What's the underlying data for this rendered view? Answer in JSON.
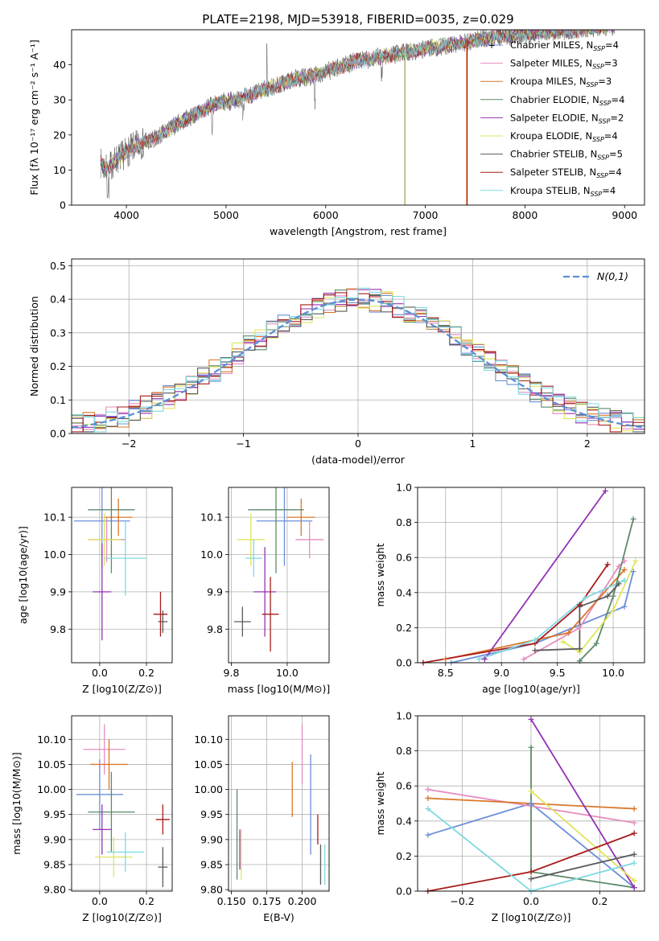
{
  "title": "PLATE=2198, MJD=53918, FIBERID=0035, z=0.029",
  "colors": {
    "Chabrier MILES": "#6b8fd9",
    "Salpeter MILES": "#e58cc0",
    "Kroupa MILES": "#d9772a",
    "Chabrier ELODIE": "#5c8a6a",
    "Salpeter ELODIE": "#9432b5",
    "Kroupa ELODIE": "#dfe55c",
    "Chabrier STELIB": "#5a5a5a",
    "Salpeter STELIB": "#a81c1c",
    "Kroupa STELIB": "#7fd9e0"
  },
  "chart_data": [
    {
      "id": "spectrum",
      "type": "line",
      "title": "PLATE=2198, MJD=53918, FIBERID=0035, z=0.029",
      "xlabel": "wavelength [Angstrom, rest frame]",
      "ylabel": "Flux [fλ 10⁻¹⁷ erg cm⁻² s⁻¹ A⁻¹]",
      "xlim": [
        3450,
        9200
      ],
      "ylim": [
        0,
        50
      ],
      "xticks": [
        4000,
        5000,
        6000,
        7000,
        8000,
        9000
      ],
      "yticks": [
        0,
        10,
        20,
        30,
        40
      ],
      "grid": false,
      "legend_position": "right",
      "legend": [
        {
          "name": "Chabrier MILES",
          "main": "Chabrier MILES, N",
          "sub": "SSP",
          "tail": "=4"
        },
        {
          "name": "Salpeter MILES",
          "main": "Salpeter MILES, N",
          "sub": "SSP",
          "tail": "=3"
        },
        {
          "name": "Kroupa MILES",
          "main": "Kroupa MILES, N",
          "sub": "SSP",
          "tail": "=3"
        },
        {
          "name": "Chabrier ELODIE",
          "main": "Chabrier ELODIE, N",
          "sub": "SSP",
          "tail": "=4"
        },
        {
          "name": "Salpeter ELODIE",
          "main": "Salpeter ELODIE, N",
          "sub": "SSP",
          "tail": "=2"
        },
        {
          "name": "Kroupa ELODIE",
          "main": "Kroupa ELODIE, N",
          "sub": "SSP",
          "tail": "=4"
        },
        {
          "name": "Chabrier STELIB",
          "main": "Chabrier STELIB, N",
          "sub": "SSP",
          "tail": "=5"
        },
        {
          "name": "Salpeter STELIB",
          "main": "Salpeter STELIB, N",
          "sub": "SSP",
          "tail": "=4"
        },
        {
          "name": "Kroupa STELIB",
          "main": "Kroupa STELIB, N",
          "sub": "SSP",
          "tail": "=4"
        }
      ],
      "continuum": [
        [
          3740,
          12
        ],
        [
          3800,
          10
        ],
        [
          3900,
          13
        ],
        [
          4000,
          15
        ],
        [
          4100,
          17
        ],
        [
          4300,
          19
        ],
        [
          4500,
          23
        ],
        [
          4700,
          26
        ],
        [
          4900,
          29
        ],
        [
          5100,
          30
        ],
        [
          5300,
          32
        ],
        [
          5500,
          34
        ],
        [
          5700,
          36
        ],
        [
          5900,
          37
        ],
        [
          6100,
          39
        ],
        [
          6300,
          41
        ],
        [
          6500,
          42
        ],
        [
          6700,
          43
        ],
        [
          6900,
          44
        ],
        [
          7100,
          45
        ],
        [
          7300,
          46
        ],
        [
          7500,
          47
        ],
        [
          7700,
          48
        ],
        [
          7900,
          48.5
        ],
        [
          8100,
          49
        ],
        [
          8300,
          49.5
        ],
        [
          8500,
          50
        ],
        [
          8800,
          51
        ]
      ]
    },
    {
      "id": "residuals",
      "type": "bar",
      "xlabel": "(data-model)/error",
      "ylabel": "Normed distribution",
      "xlim": [
        -2.5,
        2.5
      ],
      "ylim": [
        0,
        0.52
      ],
      "xticks": [
        -2,
        -1,
        0,
        1,
        2
      ],
      "yticks": [
        0.0,
        0.1,
        0.2,
        0.3,
        0.4,
        0.5
      ],
      "grid": true,
      "legend_position": "top-right",
      "legend": "N(0,1)",
      "bin_width": 0.1
    },
    {
      "id": "age-Z",
      "type": "scatter",
      "xlabel": "Z [log10(Z/Z⊙)]",
      "ylabel": "age  [log10(age/yr)]",
      "xlim": [
        -0.12,
        0.31
      ],
      "ylim": [
        9.71,
        10.18
      ],
      "xticks": [
        0.0,
        0.2
      ],
      "yticks": [
        9.8,
        9.9,
        10.0,
        10.1
      ],
      "grid": true,
      "points": [
        {
          "series": "Chabrier MILES",
          "x": 0.01,
          "y": 10.09,
          "xerr": 0.12,
          "yerr": 0.13
        },
        {
          "series": "Salpeter MILES",
          "x": 0.03,
          "y": 10.04,
          "xerr": 0.08,
          "yerr": 0.06
        },
        {
          "series": "Kroupa MILES",
          "x": 0.08,
          "y": 10.1,
          "xerr": 0.06,
          "yerr": 0.05
        },
        {
          "series": "Chabrier ELODIE",
          "x": 0.05,
          "y": 10.12,
          "xerr": 0.1,
          "yerr": 0.17
        },
        {
          "series": "Salpeter ELODIE",
          "x": 0.01,
          "y": 9.9,
          "xerr": 0.04,
          "yerr": 0.13
        },
        {
          "series": "Kroupa ELODIE",
          "x": 0.02,
          "y": 10.04,
          "xerr": 0.07,
          "yerr": 0.07
        },
        {
          "series": "Chabrier STELIB",
          "x": 0.27,
          "y": 9.82,
          "xerr": 0.02,
          "yerr": 0.03
        },
        {
          "series": "Salpeter STELIB",
          "x": 0.26,
          "y": 9.84,
          "xerr": 0.03,
          "yerr": 0.06
        },
        {
          "series": "Kroupa STELIB",
          "x": 0.11,
          "y": 9.99,
          "xerr": 0.09,
          "yerr": 0.1
        }
      ]
    },
    {
      "id": "age-mass",
      "type": "scatter",
      "xlabel": "mass [log10(M/M⊙)]",
      "ylabel": "",
      "xlim": [
        9.79,
        10.15
      ],
      "ylim": [
        9.71,
        10.18
      ],
      "xticks": [
        9.8,
        10.0
      ],
      "yticks": [
        9.8,
        9.9,
        10.0,
        10.1
      ],
      "grid": true,
      "points": [
        {
          "series": "Chabrier MILES",
          "x": 9.99,
          "y": 10.09,
          "xerr": 0.1,
          "yerr": 0.12
        },
        {
          "series": "Salpeter MILES",
          "x": 10.08,
          "y": 10.04,
          "xerr": 0.05,
          "yerr": 0.05
        },
        {
          "series": "Kroupa MILES",
          "x": 10.05,
          "y": 10.1,
          "xerr": 0.05,
          "yerr": 0.05
        },
        {
          "series": "Chabrier ELODIE",
          "x": 9.96,
          "y": 10.12,
          "xerr": 0.1,
          "yerr": 0.17
        },
        {
          "series": "Salpeter ELODIE",
          "x": 9.92,
          "y": 9.9,
          "xerr": 0.04,
          "yerr": 0.12
        },
        {
          "series": "Kroupa ELODIE",
          "x": 9.87,
          "y": 10.04,
          "xerr": 0.05,
          "yerr": 0.07
        },
        {
          "series": "Chabrier STELIB",
          "x": 9.84,
          "y": 9.82,
          "xerr": 0.03,
          "yerr": 0.04
        },
        {
          "series": "Salpeter STELIB",
          "x": 9.94,
          "y": 9.84,
          "xerr": 0.03,
          "yerr": 0.1
        },
        {
          "series": "Kroupa STELIB",
          "x": 9.88,
          "y": 9.99,
          "xerr": 0.03,
          "yerr": 0.05
        }
      ]
    },
    {
      "id": "weight-age",
      "type": "line",
      "xlabel": "age  [log10(age/yr)]",
      "ylabel": "mass weight",
      "xlim": [
        8.25,
        10.28
      ],
      "ylim": [
        0,
        1
      ],
      "xticks": [
        8.5,
        9.0,
        9.5,
        10.0
      ],
      "yticks": [
        0.0,
        0.2,
        0.4,
        0.6,
        0.8,
        1.0
      ],
      "grid": true,
      "series": [
        {
          "name": "Chabrier MILES",
          "points": [
            [
              8.55,
              0.0
            ],
            [
              9.3,
              0.11
            ],
            [
              10.1,
              0.32
            ],
            [
              10.18,
              0.52
            ]
          ]
        },
        {
          "name": "Salpeter MILES",
          "points": [
            [
              9.2,
              0.02
            ],
            [
              9.7,
              0.2
            ],
            [
              10.05,
              0.55
            ],
            [
              10.1,
              0.58
            ]
          ]
        },
        {
          "name": "Kroupa MILES",
          "points": [
            [
              8.5,
              0.02
            ],
            [
              9.6,
              0.17
            ],
            [
              10.1,
              0.53
            ]
          ]
        },
        {
          "name": "Chabrier ELODIE",
          "points": [
            [
              9.7,
              0.01
            ],
            [
              9.85,
              0.11
            ],
            [
              10.0,
              0.38
            ],
            [
              10.18,
              0.82
            ]
          ]
        },
        {
          "name": "Salpeter ELODIE",
          "points": [
            [
              8.85,
              0.02
            ],
            [
              9.93,
              0.98
            ]
          ]
        },
        {
          "name": "Kroupa ELODIE",
          "points": [
            [
              9.55,
              0.12
            ],
            [
              9.7,
              0.06
            ],
            [
              10.0,
              0.3
            ],
            [
              10.2,
              0.58
            ]
          ]
        },
        {
          "name": "Chabrier STELIB",
          "points": [
            [
              9.3,
              0.07
            ],
            [
              9.7,
              0.08
            ],
            [
              9.7,
              0.32
            ],
            [
              9.95,
              0.38
            ],
            [
              10.05,
              0.45
            ]
          ]
        },
        {
          "name": "Salpeter STELIB",
          "points": [
            [
              8.3,
              0.0
            ],
            [
              9.3,
              0.11
            ],
            [
              9.7,
              0.33
            ],
            [
              9.95,
              0.56
            ]
          ]
        },
        {
          "name": "Kroupa STELIB",
          "points": [
            [
              8.8,
              0.02
            ],
            [
              9.3,
              0.13
            ],
            [
              9.75,
              0.37
            ],
            [
              10.1,
              0.47
            ]
          ]
        }
      ]
    },
    {
      "id": "mass-Z",
      "type": "scatter",
      "xlabel": "Z [log10(Z/Z⊙)]",
      "ylabel": "mass [log10(M/M⊙)]",
      "xlim": [
        -0.12,
        0.31
      ],
      "ylim": [
        9.797,
        10.147
      ],
      "xticks": [
        0.0,
        0.2
      ],
      "yticks": [
        9.8,
        9.85,
        9.9,
        9.95,
        10.0,
        10.05,
        10.1
      ],
      "grid": true,
      "points": [
        {
          "series": "Chabrier MILES",
          "x": 0.0,
          "y": 9.99,
          "xerr": 0.1,
          "yerr": 0.07
        },
        {
          "series": "Salpeter MILES",
          "x": 0.02,
          "y": 10.08,
          "xerr": 0.09,
          "yerr": 0.05
        },
        {
          "series": "Kroupa MILES",
          "x": 0.04,
          "y": 10.05,
          "xerr": 0.08,
          "yerr": 0.05
        },
        {
          "series": "Chabrier ELODIE",
          "x": 0.05,
          "y": 9.955,
          "xerr": 0.1,
          "yerr": 0.08
        },
        {
          "series": "Salpeter ELODIE",
          "x": 0.01,
          "y": 9.92,
          "xerr": 0.04,
          "yerr": 0.05
        },
        {
          "series": "Kroupa ELODIE",
          "x": 0.06,
          "y": 9.865,
          "xerr": 0.08,
          "yerr": 0.04
        },
        {
          "series": "Chabrier STELIB",
          "x": 0.27,
          "y": 9.845,
          "xerr": 0.02,
          "yerr": 0.04
        },
        {
          "series": "Salpeter STELIB",
          "x": 0.27,
          "y": 9.94,
          "xerr": 0.03,
          "yerr": 0.03
        },
        {
          "series": "Kroupa STELIB",
          "x": 0.11,
          "y": 9.875,
          "xerr": 0.08,
          "yerr": 0.04
        }
      ]
    },
    {
      "id": "mass-EBV",
      "type": "scatter",
      "xlabel": "E(B-V)",
      "ylabel": "",
      "xlim": [
        0.148,
        0.219
      ],
      "ylim": [
        9.797,
        10.147
      ],
      "xticks": [
        0.15,
        0.175,
        0.2
      ],
      "yticks": [
        9.8,
        9.85,
        9.9,
        9.95,
        10.0,
        10.05,
        10.1
      ],
      "grid": true,
      "points": [
        {
          "series": "Chabrier MILES",
          "x": 0.206,
          "y": 9.97,
          "xerr": 0.0,
          "yerr": 0.1
        },
        {
          "series": "Salpeter MILES",
          "x": 0.2,
          "y": 10.07,
          "xerr": 0.0,
          "yerr": 0.06
        },
        {
          "series": "Kroupa MILES",
          "x": 0.193,
          "y": 10.0,
          "xerr": 0.0,
          "yerr": 0.055
        },
        {
          "series": "Chabrier ELODIE",
          "x": 0.154,
          "y": 9.91,
          "xerr": 0.0,
          "yerr": 0.09
        },
        {
          "series": "Salpeter ELODIE",
          "x": 0.156,
          "y": 9.88,
          "xerr": 0.0,
          "yerr": 0.04
        },
        {
          "series": "Kroupa ELODIE",
          "x": 0.157,
          "y": 9.87,
          "xerr": 0.0,
          "yerr": 0.05
        },
        {
          "series": "Chabrier STELIB",
          "x": 0.213,
          "y": 9.85,
          "xerr": 0.0,
          "yerr": 0.04
        },
        {
          "series": "Salpeter STELIB",
          "x": 0.211,
          "y": 9.92,
          "xerr": 0.0,
          "yerr": 0.03
        },
        {
          "series": "Kroupa STELIB",
          "x": 0.216,
          "y": 9.85,
          "xerr": 0.0,
          "yerr": 0.04
        }
      ]
    },
    {
      "id": "weight-Z",
      "type": "line",
      "xlabel": "Z [log10(Z/Z⊙)]",
      "ylabel": "mass weight",
      "xlim": [
        -0.33,
        0.33
      ],
      "ylim": [
        0,
        1
      ],
      "xticks": [
        -0.2,
        0.0,
        0.2
      ],
      "yticks": [
        0.0,
        0.2,
        0.4,
        0.6,
        0.8,
        1.0
      ],
      "grid": true,
      "series": [
        {
          "name": "Chabrier MILES",
          "points": [
            [
              -0.3,
              0.32
            ],
            [
              0.0,
              0.5
            ],
            [
              0.3,
              0.02
            ]
          ]
        },
        {
          "name": "Salpeter MILES",
          "points": [
            [
              -0.3,
              0.58
            ],
            [
              0.3,
              0.39
            ]
          ]
        },
        {
          "name": "Kroupa MILES",
          "points": [
            [
              -0.3,
              0.53
            ],
            [
              0.3,
              0.47
            ]
          ]
        },
        {
          "name": "Chabrier ELODIE",
          "points": [
            [
              0.0,
              0.82
            ],
            [
              0.0,
              0.11
            ],
            [
              0.3,
              0.02
            ]
          ]
        },
        {
          "name": "Salpeter ELODIE",
          "points": [
            [
              0.0,
              0.98
            ],
            [
              0.3,
              0.02
            ]
          ]
        },
        {
          "name": "Kroupa ELODIE",
          "points": [
            [
              0.0,
              0.57
            ],
            [
              0.3,
              0.06
            ]
          ]
        },
        {
          "name": "Chabrier STELIB",
          "points": [
            [
              0.0,
              0.07
            ],
            [
              0.3,
              0.21
            ]
          ]
        },
        {
          "name": "Salpeter STELIB",
          "points": [
            [
              -0.3,
              0.0
            ],
            [
              0.0,
              0.11
            ],
            [
              0.3,
              0.33
            ]
          ]
        },
        {
          "name": "Kroupa STELIB",
          "points": [
            [
              -0.3,
              0.47
            ],
            [
              0.0,
              0.0
            ],
            [
              0.3,
              0.16
            ]
          ]
        }
      ]
    }
  ]
}
